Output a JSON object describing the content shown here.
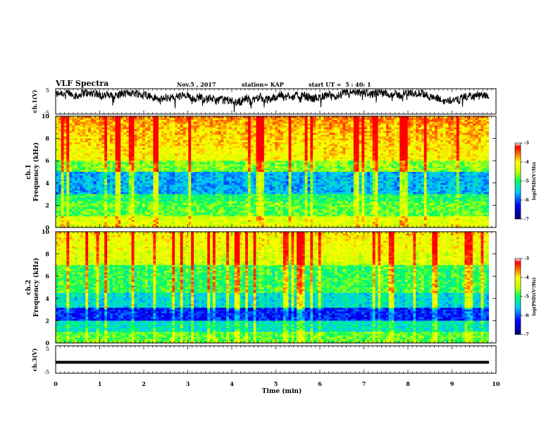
{
  "header": {
    "title": "VLF Spectra",
    "date": "Nov.5 , 2017",
    "station": "station= KAP",
    "start": "start UT =  5 : 40: 1"
  },
  "chart_data": [
    {
      "type": "line",
      "panel": "ch1-waveform",
      "ylabel": "ch.1(V)",
      "ylim": [
        -5,
        5
      ],
      "yticks": [
        "5",
        "-5"
      ],
      "xlim": [
        0,
        10
      ]
    },
    {
      "type": "heatmap",
      "panel": "ch1-spectrogram",
      "ylabel": "ch.1\nFrequency (kHz)",
      "ylabel_line1": "ch.1",
      "ylabel_line2": "Frequency (kHz)",
      "ylim": [
        0,
        10
      ],
      "yticks": [
        "0",
        "2",
        "4",
        "6",
        "8",
        "10"
      ],
      "colorbar": {
        "label": "log(PSD)(V²/Hz)",
        "min": -7,
        "max": -3,
        "ticks": [
          "-3",
          "-4",
          "-5",
          "-6",
          "-7"
        ]
      }
    },
    {
      "type": "heatmap",
      "panel": "ch2-spectrogram",
      "ylabel_line1": "ch.2",
      "ylabel_line2": "Frequency (kHz)",
      "ylim": [
        0,
        10
      ],
      "yticks": [
        "0",
        "2",
        "4",
        "6",
        "8",
        "10"
      ],
      "colorbar": {
        "label": "log(PSD)(V²/Hz)",
        "min": -7,
        "max": -3,
        "ticks": [
          "-3",
          "-4",
          "-5",
          "-6",
          "-7"
        ]
      }
    },
    {
      "type": "line",
      "panel": "ch3-waveform",
      "ylabel": "ch.3(V)",
      "ylim": [
        -5,
        5
      ],
      "yticks": [
        "5",
        "-5"
      ],
      "level": -1,
      "xlabel": "Time (min)",
      "xlim": [
        0,
        10
      ],
      "xticks": [
        "0",
        "1",
        "2",
        "3",
        "4",
        "5",
        "6",
        "7",
        "8",
        "9",
        "10"
      ]
    }
  ]
}
